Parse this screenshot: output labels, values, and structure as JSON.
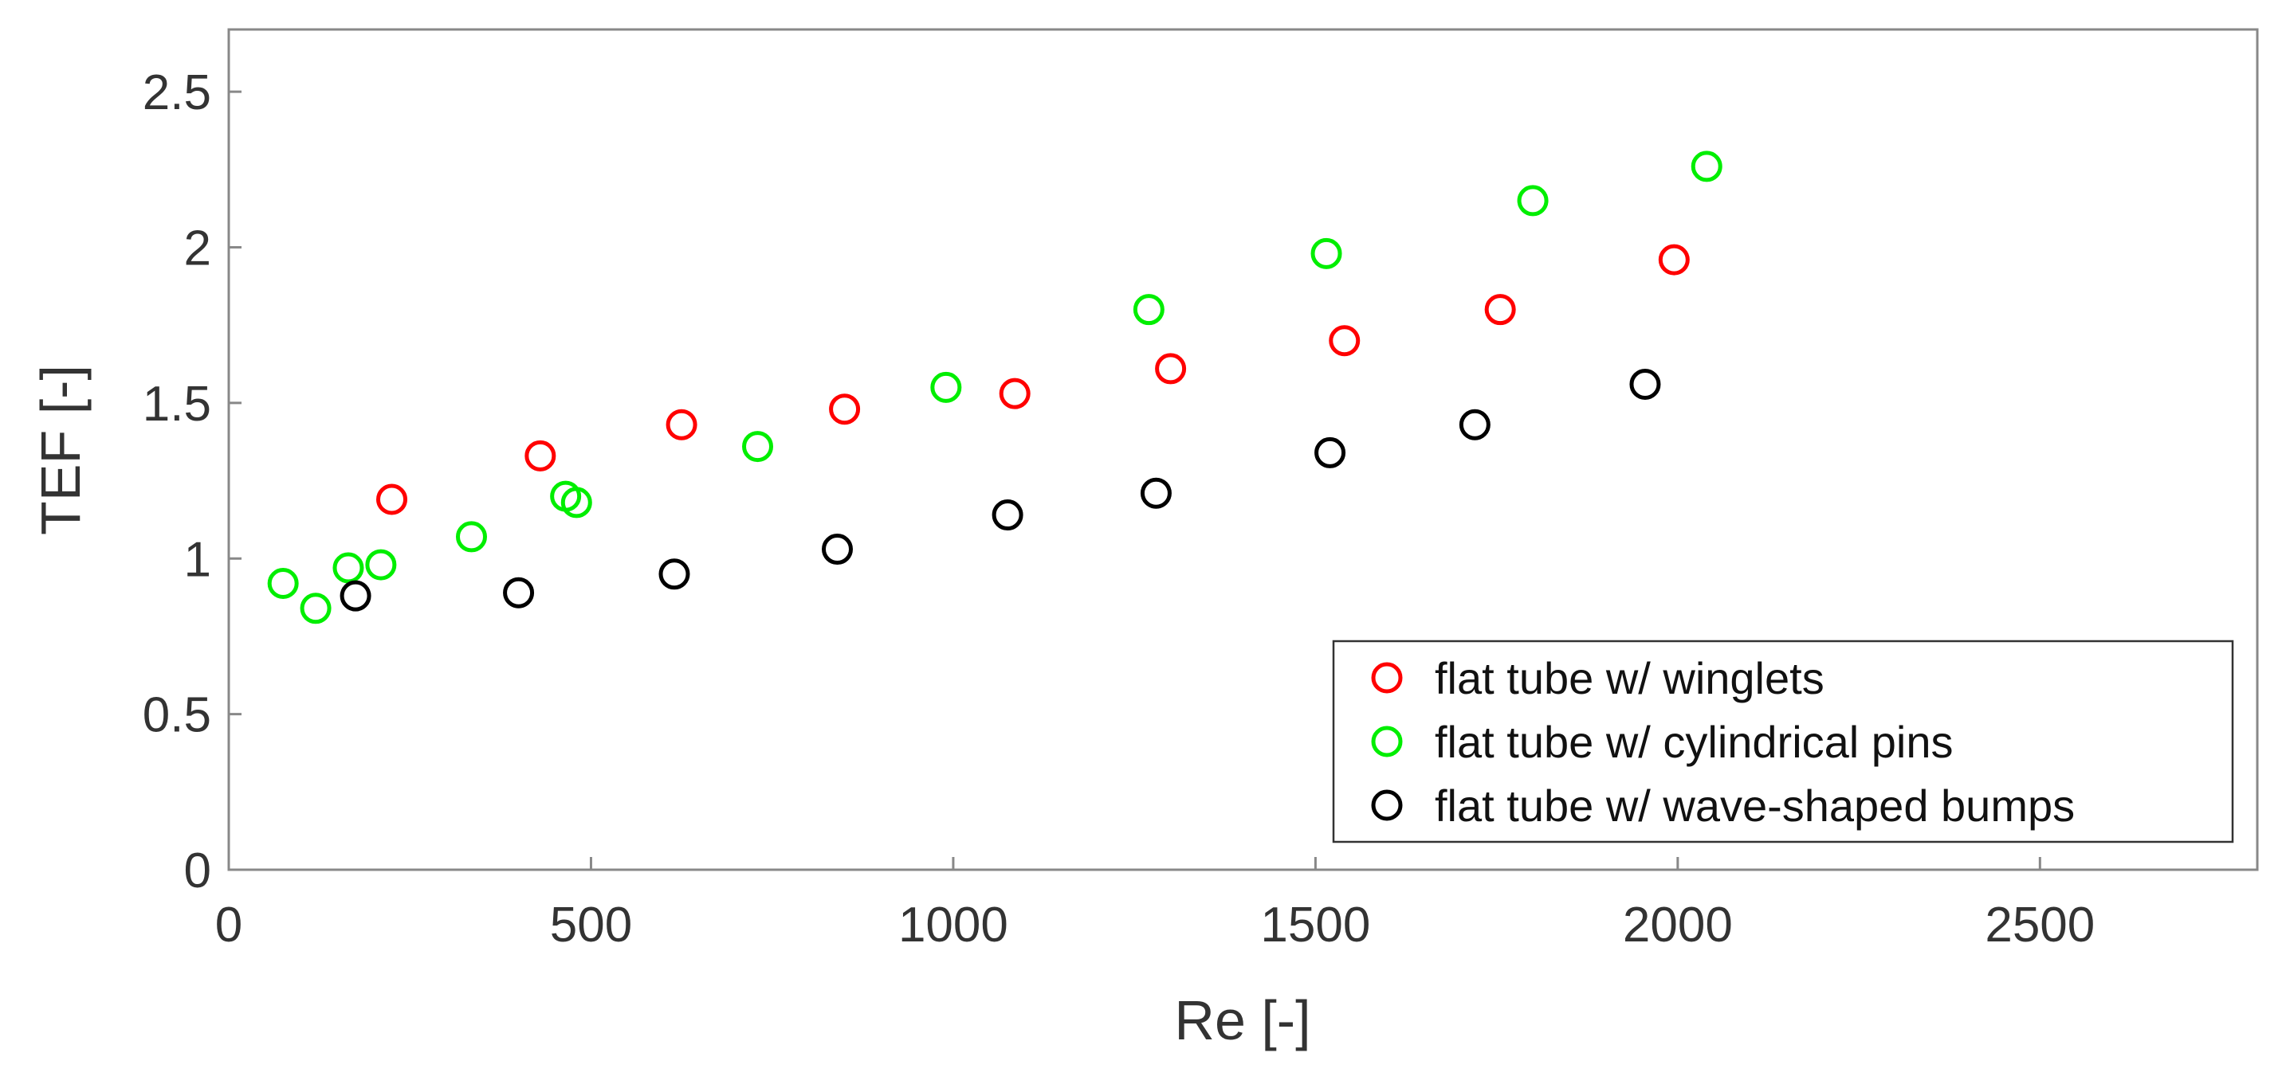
{
  "chart_data": {
    "type": "scatter",
    "title": "",
    "xlabel": "Re [-]",
    "ylabel": "TEF [-]",
    "xlim": [
      0,
      2800
    ],
    "ylim": [
      0,
      2.7
    ],
    "xticks": [
      0,
      500,
      1000,
      1500,
      2000,
      2500
    ],
    "yticks": [
      0,
      0.5,
      1,
      1.5,
      2,
      2.5
    ],
    "xtick_labels": [
      "0",
      "500",
      "1000",
      "1500",
      "2000",
      "2500"
    ],
    "ytick_labels": [
      "0",
      "0.5",
      "1",
      "1.5",
      "2",
      "2.5"
    ],
    "grid": false,
    "legend_position": "bottom-right",
    "series": [
      {
        "name": "flat tube w/ winglets",
        "color": "#ff0000",
        "marker": "open-circle",
        "x": [
          225,
          430,
          625,
          850,
          1085,
          1300,
          1540,
          1755,
          1995
        ],
        "y": [
          1.19,
          1.33,
          1.43,
          1.48,
          1.53,
          1.61,
          1.7,
          1.8,
          1.96
        ]
      },
      {
        "name": "flat tube w/ cylindrical pins",
        "color": "#00ee00",
        "marker": "open-circle",
        "x": [
          75,
          120,
          165,
          210,
          335,
          465,
          480,
          730,
          990,
          1270,
          1515,
          1800,
          2040
        ],
        "y": [
          0.92,
          0.84,
          0.97,
          0.98,
          1.07,
          1.2,
          1.18,
          1.36,
          1.55,
          1.8,
          1.98,
          2.15,
          2.26
        ]
      },
      {
        "name": "flat tube w/ wave-shaped bumps",
        "color": "#000000",
        "marker": "open-circle",
        "x": [
          175,
          400,
          615,
          840,
          1075,
          1280,
          1520,
          1720,
          1955
        ],
        "y": [
          0.88,
          0.89,
          0.95,
          1.03,
          1.14,
          1.21,
          1.34,
          1.43,
          1.56
        ]
      }
    ]
  }
}
